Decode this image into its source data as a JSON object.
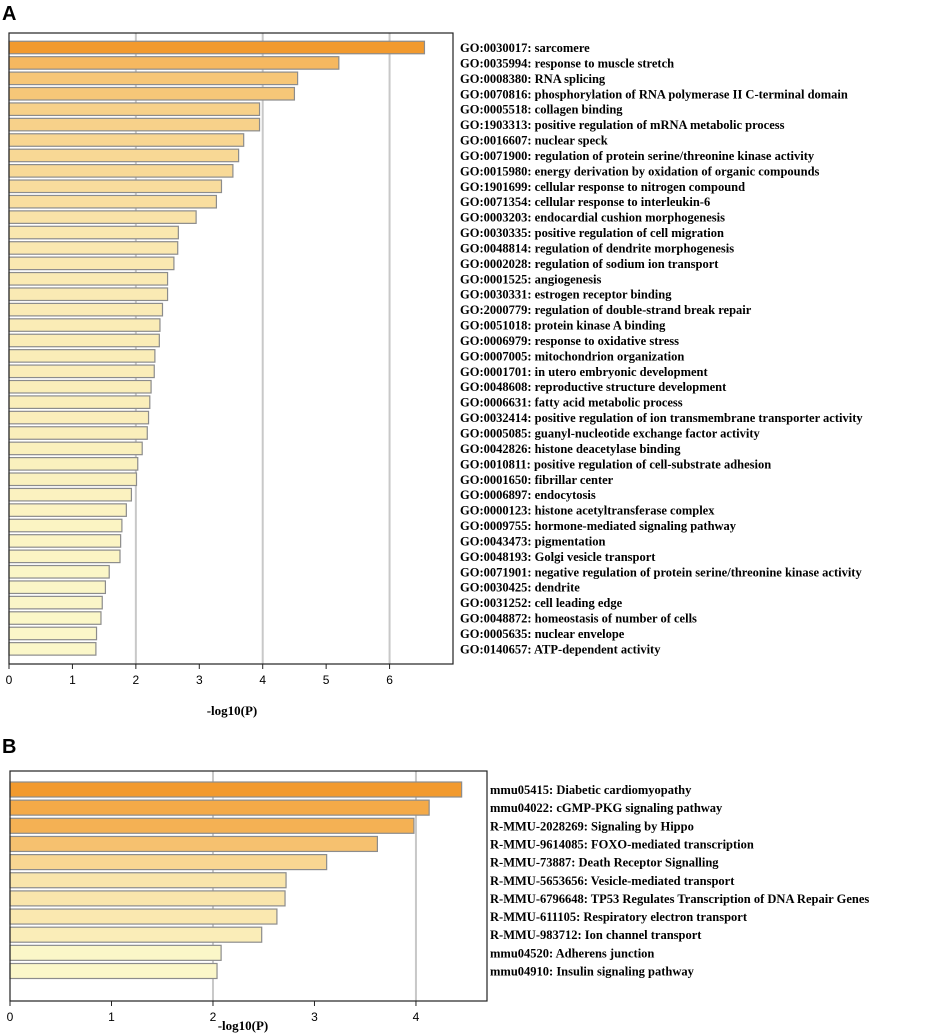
{
  "chart_data": [
    {
      "panel": "A",
      "type": "bar",
      "orientation": "horizontal",
      "xlabel": "-log10(P)",
      "xlim": [
        0,
        7
      ],
      "xticks": [
        0,
        1,
        2,
        3,
        4,
        5,
        6
      ],
      "gridlines": [
        2,
        4,
        6
      ],
      "color_scale": [
        "#fbf7c9",
        "#f29a2e"
      ],
      "categories": [
        "GO:0030017: sarcomere",
        "GO:0035994: response to muscle stretch",
        "GO:0008380: RNA splicing",
        "GO:0070816: phosphorylation of RNA polymerase II C-terminal domain",
        "GO:0005518: collagen binding",
        "GO:1903313: positive regulation of mRNA metabolic process",
        "GO:0016607: nuclear speck",
        "GO:0071900: regulation of protein serine/threonine kinase activity",
        "GO:0015980: energy derivation by oxidation of organic compounds",
        "GO:1901699: cellular response to nitrogen compound",
        "GO:0071354: cellular response to interleukin-6",
        "GO:0003203: endocardial cushion morphogenesis",
        "GO:0030335: positive regulation of cell migration",
        "GO:0048814: regulation of dendrite morphogenesis",
        "GO:0002028: regulation of sodium ion transport",
        "GO:0001525: angiogenesis",
        "GO:0030331: estrogen receptor binding",
        "GO:2000779: regulation of double-strand break repair",
        "GO:0051018: protein kinase A binding",
        "GO:0006979: response to oxidative stress",
        "GO:0007005: mitochondrion organization",
        "GO:0001701: in utero embryonic development",
        "GO:0048608: reproductive structure development",
        "GO:0006631: fatty acid metabolic process",
        "GO:0032414: positive regulation of ion transmembrane transporter activity",
        "GO:0005085: guanyl-nucleotide exchange factor activity",
        "GO:0042826: histone deacetylase binding",
        "GO:0010811: positive regulation of cell-substrate adhesion",
        "GO:0001650: fibrillar center",
        "GO:0006897: endocytosis",
        "GO:0000123: histone acetyltransferase complex",
        "GO:0009755: hormone-mediated signaling pathway",
        "GO:0043473: pigmentation",
        "GO:0048193: Golgi vesicle transport",
        "GO:0071901: negative regulation of protein serine/threonine kinase activity",
        "GO:0030425: dendrite",
        "GO:0031252: cell leading edge",
        "GO:0048872: homeostasis of number of cells",
        "GO:0005635: nuclear envelope",
        "GO:0140657: ATP-dependent activity"
      ],
      "values": [
        6.55,
        5.2,
        4.55,
        4.5,
        3.95,
        3.95,
        3.7,
        3.62,
        3.53,
        3.35,
        3.27,
        2.95,
        2.67,
        2.66,
        2.6,
        2.5,
        2.5,
        2.42,
        2.38,
        2.37,
        2.3,
        2.29,
        2.24,
        2.22,
        2.2,
        2.18,
        2.1,
        2.03,
        2.01,
        1.93,
        1.85,
        1.78,
        1.76,
        1.75,
        1.58,
        1.52,
        1.47,
        1.45,
        1.38,
        1.37
      ]
    },
    {
      "panel": "B",
      "type": "bar",
      "orientation": "horizontal",
      "xlabel": "-log10(P)",
      "xlim": [
        0,
        4.7
      ],
      "xticks": [
        0,
        1,
        2,
        3,
        4
      ],
      "gridlines": [
        2,
        4
      ],
      "color_scale": [
        "#fbf7c9",
        "#f29a2e"
      ],
      "categories": [
        "mmu05415: Diabetic cardiomyopathy",
        "mmu04022: cGMP-PKG signaling pathway",
        "R-MMU-2028269: Signaling by Hippo",
        "R-MMU-9614085: FOXO-mediated transcription",
        "R-MMU-73887: Death Receptor Signalling",
        "R-MMU-5653656: Vesicle-mediated transport",
        "R-MMU-6796648: TP53 Regulates Transcription of DNA Repair Genes",
        "R-MMU-611105: Respiratory electron transport",
        "R-MMU-983712: Ion channel transport",
        "mmu04520: Adherens junction",
        "mmu04910: Insulin signaling pathway"
      ],
      "values": [
        4.45,
        4.13,
        3.98,
        3.62,
        3.12,
        2.72,
        2.71,
        2.63,
        2.48,
        2.08,
        2.04
      ]
    }
  ]
}
